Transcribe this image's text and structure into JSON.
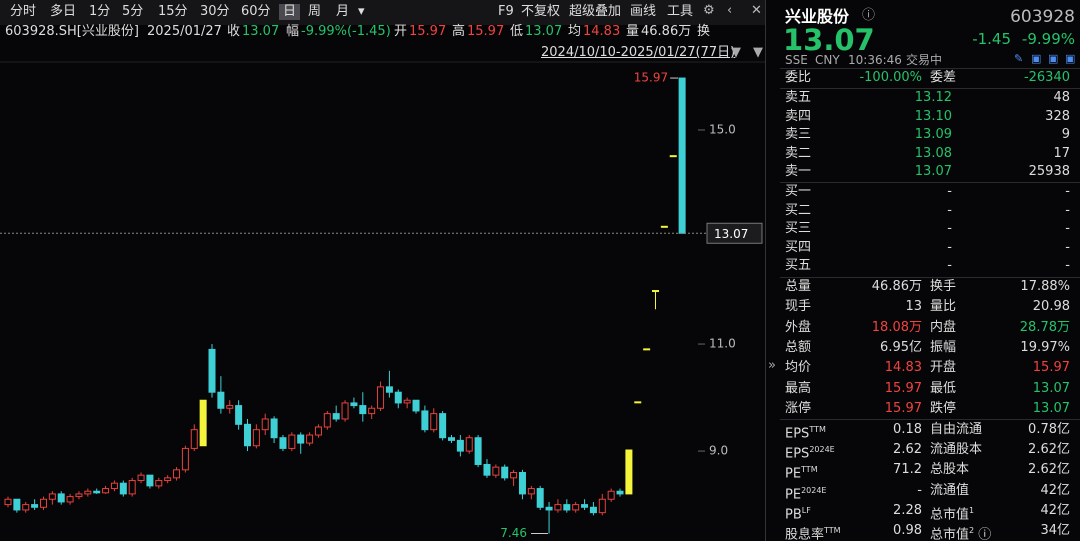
{
  "toolbar": {
    "periods": [
      "分时",
      "多日",
      "1分",
      "5分",
      "15分",
      "30分",
      "60分",
      "日",
      "周",
      "月"
    ],
    "active": 7,
    "tools": [
      "F9",
      "不复权",
      "超级叠加",
      "画线",
      "工具"
    ]
  },
  "info_bar": {
    "code": "603928.SH[兴业股份]",
    "date": "2025/01/27",
    "items": [
      {
        "label": "收",
        "value": "13.07",
        "color": "#25c26a"
      },
      {
        "label": "幅",
        "value": "-9.99%(-1.45)",
        "color": "#25c26a"
      },
      {
        "label": "开",
        "value": "15.97",
        "color": "#f0433f"
      },
      {
        "label": "高",
        "value": "15.97",
        "color": "#f0433f"
      },
      {
        "label": "低",
        "value": "13.07",
        "color": "#25c26a"
      },
      {
        "label": "均",
        "value": "14.83",
        "color": "#f0433f"
      },
      {
        "label": "量",
        "value": "46.86万",
        "color": "#dddddd"
      }
    ],
    "cut_label": "换"
  },
  "range": "2024/10/10-2025/01/27(77日)",
  "chart": {
    "ylim": [
      7.32,
      16.27
    ],
    "yticks": [
      {
        "value": 9,
        "label": "9.0"
      },
      {
        "value": 11,
        "label": "11.0"
      },
      {
        "value": 15,
        "label": "15.0"
      }
    ],
    "up_color": "#e8413c",
    "down_color": "#3fd0d6",
    "highlight_color": "#f4f43a",
    "highlight": [
      22,
      70,
      71,
      72,
      73,
      74,
      75
    ],
    "candles": [
      [
        8.0,
        8.15,
        7.95,
        8.1
      ],
      [
        8.1,
        8.1,
        7.85,
        7.9
      ],
      [
        7.9,
        8.05,
        7.85,
        8.0
      ],
      [
        8.0,
        8.1,
        7.9,
        7.95
      ],
      [
        7.95,
        8.15,
        7.9,
        8.1
      ],
      [
        8.1,
        8.25,
        8.0,
        8.2
      ],
      [
        8.2,
        8.25,
        8.0,
        8.05
      ],
      [
        8.05,
        8.2,
        8.0,
        8.15
      ],
      [
        8.15,
        8.25,
        8.1,
        8.2
      ],
      [
        8.2,
        8.3,
        8.15,
        8.25
      ],
      [
        8.25,
        8.3,
        8.2,
        8.22
      ],
      [
        8.22,
        8.35,
        8.2,
        8.3
      ],
      [
        8.3,
        8.45,
        8.25,
        8.4
      ],
      [
        8.4,
        8.45,
        8.15,
        8.2
      ],
      [
        8.2,
        8.5,
        8.15,
        8.45
      ],
      [
        8.45,
        8.6,
        8.4,
        8.55
      ],
      [
        8.55,
        8.55,
        8.3,
        8.35
      ],
      [
        8.35,
        8.5,
        8.3,
        8.45
      ],
      [
        8.45,
        8.55,
        8.4,
        8.5
      ],
      [
        8.5,
        8.7,
        8.45,
        8.65
      ],
      [
        8.65,
        9.1,
        8.6,
        9.05
      ],
      [
        9.05,
        9.5,
        9.0,
        9.4
      ],
      [
        9.1,
        9.95,
        9.1,
        9.95
      ],
      [
        10.9,
        11.0,
        10.0,
        10.1
      ],
      [
        10.1,
        10.4,
        9.7,
        9.8
      ],
      [
        9.8,
        9.95,
        9.7,
        9.85
      ],
      [
        9.85,
        9.95,
        9.4,
        9.5
      ],
      [
        9.5,
        9.6,
        9.0,
        9.1
      ],
      [
        9.1,
        9.5,
        9.05,
        9.4
      ],
      [
        9.4,
        9.7,
        9.3,
        9.6
      ],
      [
        9.6,
        9.65,
        9.15,
        9.25
      ],
      [
        9.25,
        9.3,
        9.0,
        9.05
      ],
      [
        9.05,
        9.35,
        9.0,
        9.3
      ],
      [
        9.3,
        9.35,
        8.95,
        9.15
      ],
      [
        9.15,
        9.35,
        9.1,
        9.3
      ],
      [
        9.3,
        9.5,
        9.25,
        9.45
      ],
      [
        9.45,
        9.75,
        9.4,
        9.7
      ],
      [
        9.7,
        9.85,
        9.55,
        9.6
      ],
      [
        9.6,
        9.95,
        9.55,
        9.9
      ],
      [
        9.9,
        10.0,
        9.8,
        9.85
      ],
      [
        9.85,
        10.1,
        9.55,
        9.7
      ],
      [
        9.7,
        9.85,
        9.6,
        9.8
      ],
      [
        9.8,
        10.3,
        9.75,
        10.2
      ],
      [
        10.2,
        10.5,
        10.0,
        10.1
      ],
      [
        10.1,
        10.15,
        9.8,
        9.9
      ],
      [
        9.9,
        10.0,
        9.8,
        9.95
      ],
      [
        9.95,
        9.95,
        9.7,
        9.75
      ],
      [
        9.75,
        9.85,
        9.35,
        9.4
      ],
      [
        9.4,
        9.8,
        9.35,
        9.7
      ],
      [
        9.7,
        9.75,
        9.2,
        9.25
      ],
      [
        9.25,
        9.3,
        9.15,
        9.2
      ],
      [
        9.2,
        9.3,
        8.9,
        9.0
      ],
      [
        9.0,
        9.3,
        8.95,
        9.25
      ],
      [
        9.25,
        9.3,
        8.7,
        8.75
      ],
      [
        8.75,
        8.85,
        8.5,
        8.55
      ],
      [
        8.55,
        8.75,
        8.5,
        8.7
      ],
      [
        8.7,
        8.75,
        8.45,
        8.5
      ],
      [
        8.5,
        8.65,
        8.35,
        8.6
      ],
      [
        8.6,
        8.65,
        8.1,
        8.2
      ],
      [
        8.2,
        8.35,
        8.1,
        8.3
      ],
      [
        8.3,
        8.35,
        7.9,
        7.95
      ],
      [
        7.95,
        8.05,
        7.46,
        7.9
      ],
      [
        7.9,
        8.1,
        7.85,
        8.0
      ],
      [
        8.0,
        8.1,
        7.85,
        7.9
      ],
      [
        7.9,
        8.05,
        7.85,
        8.0
      ],
      [
        8.0,
        8.1,
        7.9,
        7.95
      ],
      [
        7.95,
        8.05,
        7.8,
        7.85
      ],
      [
        7.85,
        8.2,
        7.8,
        8.1
      ],
      [
        8.1,
        8.3,
        8.05,
        8.25
      ],
      [
        8.25,
        8.3,
        8.15,
        8.2
      ],
      [
        8.2,
        9.02,
        8.2,
        9.02
      ],
      [
        9.92,
        9.92,
        9.92,
        9.92
      ],
      [
        10.91,
        10.91,
        10.91,
        10.91
      ],
      [
        12.0,
        12.0,
        11.65,
        12.0
      ],
      [
        13.2,
        13.2,
        13.2,
        13.2
      ],
      [
        14.52,
        14.52,
        14.52,
        14.52
      ],
      [
        15.97,
        15.97,
        13.07,
        13.07
      ]
    ],
    "high_label": 15.97,
    "low_label": 7.46,
    "last_price": 13.07
  },
  "quote": {
    "name": "兴业股份",
    "code": "603928",
    "price": "13.07",
    "change": "-1.45",
    "change_pct": "-9.99%",
    "exchange": "SSE",
    "currency": "CNY",
    "time": "10:36:46",
    "status": "交易中"
  },
  "order_book": {
    "ratio_label": "委比",
    "ratio": "-100.00%",
    "diff_label": "委差",
    "diff": "-26340",
    "asks": [
      [
        "卖五",
        "13.12",
        "48"
      ],
      [
        "卖四",
        "13.10",
        "328"
      ],
      [
        "卖三",
        "13.09",
        "9"
      ],
      [
        "卖二",
        "13.08",
        "17"
      ],
      [
        "卖一",
        "13.07",
        "25938"
      ]
    ],
    "bids": [
      [
        "买一",
        "-",
        "-"
      ],
      [
        "买二",
        "-",
        "-"
      ],
      [
        "买三",
        "-",
        "-"
      ],
      [
        "买四",
        "-",
        "-"
      ],
      [
        "买五",
        "-",
        "-"
      ]
    ]
  },
  "stats": [
    [
      {
        "label": "总量",
        "value": "46.86万"
      },
      {
        "label": "换手",
        "value": "17.88%"
      }
    ],
    [
      {
        "label": "现手",
        "value": "13"
      },
      {
        "label": "量比",
        "value": "20.98"
      }
    ],
    [
      {
        "label": "外盘",
        "value": "18.08万",
        "color": "#f0433f"
      },
      {
        "label": "内盘",
        "value": "28.78万",
        "color": "#25c26a"
      }
    ],
    [
      {
        "label": "总额",
        "value": "6.95亿"
      },
      {
        "label": "振幅",
        "value": "19.97%"
      }
    ],
    [
      {
        "label": "均价",
        "value": "14.83",
        "color": "#f0433f"
      },
      {
        "label": "开盘",
        "value": "15.97",
        "color": "#f0433f"
      }
    ],
    [
      {
        "label": "最高",
        "value": "15.97",
        "color": "#f0433f"
      },
      {
        "label": "最低",
        "value": "13.07",
        "color": "#25c26a"
      }
    ],
    [
      {
        "label": "涨停",
        "value": "15.97",
        "color": "#f0433f"
      },
      {
        "label": "跌停",
        "value": "13.07",
        "color": "#25c26a"
      }
    ]
  ],
  "fundamentals": [
    [
      {
        "label": "EPS",
        "sup": "TTM",
        "value": "0.18"
      },
      {
        "label": "自由流通",
        "value": "0.78亿"
      }
    ],
    [
      {
        "label": "EPS",
        "sup": "2024E",
        "value": "2.62"
      },
      {
        "label": "流通股本",
        "value": "2.62亿"
      }
    ],
    [
      {
        "label": "PE",
        "sup": "TTM",
        "value": "71.2"
      },
      {
        "label": "总股本",
        "value": "2.62亿"
      }
    ],
    [
      {
        "label": "PE",
        "sup": "2024E",
        "value": "-"
      },
      {
        "label": "流通值",
        "value": "42亿"
      }
    ],
    [
      {
        "label": "PB",
        "sup": "LF",
        "value": "2.28"
      },
      {
        "label": "总市值",
        "sup": "1",
        "value": "42亿"
      }
    ],
    [
      {
        "label": "股息率",
        "sup": "TTM",
        "value": "0.98"
      },
      {
        "label": "总市值",
        "sup": "2",
        "value": "34亿"
      }
    ]
  ]
}
